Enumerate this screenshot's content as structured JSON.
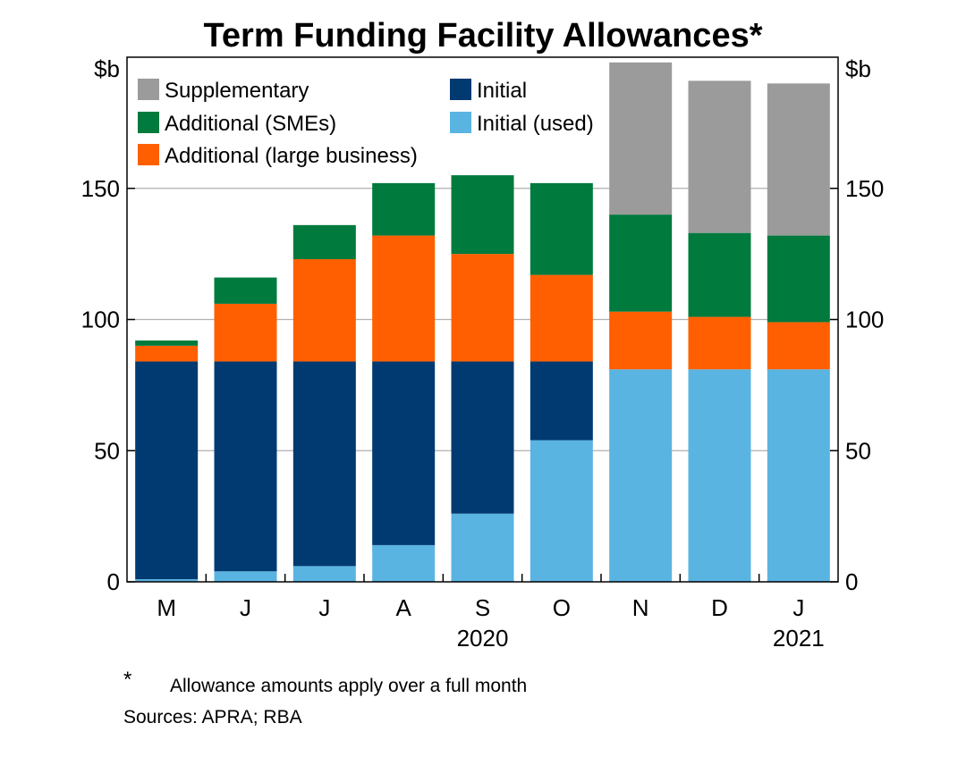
{
  "chart_data": {
    "type": "bar",
    "stacked": true,
    "title": "Term Funding Facility Allowances*",
    "ylabel_left": "$b",
    "ylabel_right": "$b",
    "ylim": [
      0,
      200
    ],
    "yticks": [
      0,
      50,
      100,
      150
    ],
    "grid": true,
    "legend_position": "top-left",
    "categories": [
      "M",
      "J",
      "J",
      "A",
      "S",
      "O",
      "N",
      "D",
      "J"
    ],
    "year_labels": [
      {
        "label": "2020",
        "category_index": 4
      },
      {
        "label": "2021",
        "category_index": 8
      }
    ],
    "series": [
      {
        "name": "Initial (used)",
        "color": "#5ab4e2",
        "values": [
          1,
          4,
          6,
          14,
          26,
          54,
          81,
          81,
          81
        ]
      },
      {
        "name": "Initial",
        "color": "#003a70",
        "values": [
          83,
          80,
          78,
          70,
          58,
          30,
          0,
          0,
          0
        ]
      },
      {
        "name": "Additional (large business)",
        "color": "#ff5f00",
        "values": [
          6,
          22,
          39,
          48,
          41,
          33,
          22,
          20,
          18
        ]
      },
      {
        "name": "Additional (SMEs)",
        "color": "#007a3d",
        "values": [
          2,
          10,
          13,
          20,
          30,
          35,
          37,
          32,
          33
        ]
      },
      {
        "name": "Supplementary",
        "color": "#9b9b9b",
        "values": [
          0,
          0,
          0,
          0,
          0,
          0,
          58,
          58,
          58
        ]
      }
    ],
    "legend_order": [
      [
        "Supplementary",
        "Initial"
      ],
      [
        "Additional (SMEs)",
        "Initial (used)"
      ],
      [
        "Additional (large business)"
      ]
    ],
    "footnote_marker": "*",
    "footnote_text": "Allowance amounts apply over a full month",
    "sources": "Sources: APRA; RBA"
  }
}
